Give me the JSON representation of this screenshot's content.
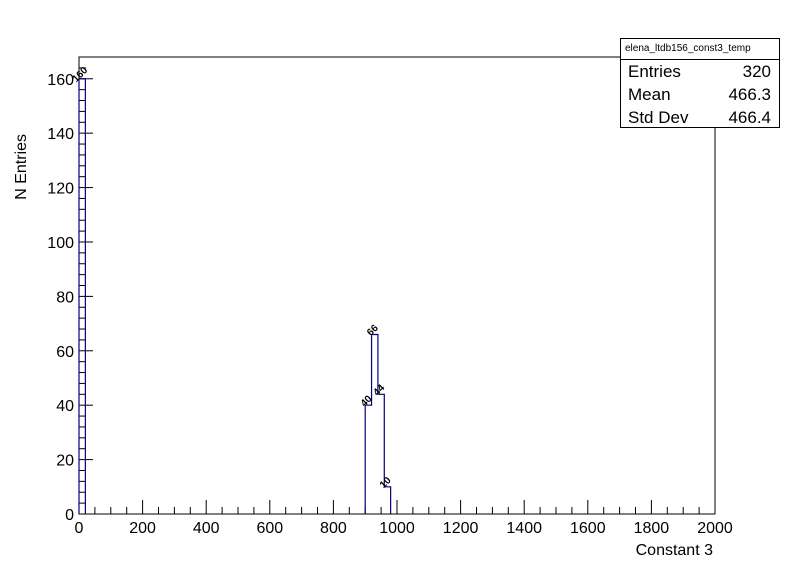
{
  "chart_data": {
    "type": "bar",
    "title": "",
    "xlabel": "Constant 3",
    "ylabel": "N Entries",
    "xlim": [
      0,
      2000
    ],
    "ylim": [
      0,
      168
    ],
    "x_ticks": [
      0,
      200,
      400,
      600,
      800,
      1000,
      1200,
      1400,
      1600,
      1800,
      2000
    ],
    "y_ticks": [
      0,
      20,
      40,
      60,
      80,
      100,
      120,
      140,
      160
    ],
    "bin_width": 20,
    "bins": [
      {
        "x": 0,
        "value": 160,
        "label": "160"
      },
      {
        "x": 900,
        "value": 40,
        "label": "40"
      },
      {
        "x": 920,
        "value": 66,
        "label": "66"
      },
      {
        "x": 940,
        "value": 44,
        "label": "44"
      },
      {
        "x": 960,
        "value": 10,
        "label": "10"
      }
    ],
    "line_color": "#000080",
    "grid": false
  },
  "stats": {
    "title": "elena_ltdb156_const3_temp",
    "rows": [
      {
        "label": "Entries",
        "value": "320"
      },
      {
        "label": "Mean",
        "value": "466.3"
      },
      {
        "label": "Std Dev",
        "value": "466.4"
      }
    ]
  }
}
